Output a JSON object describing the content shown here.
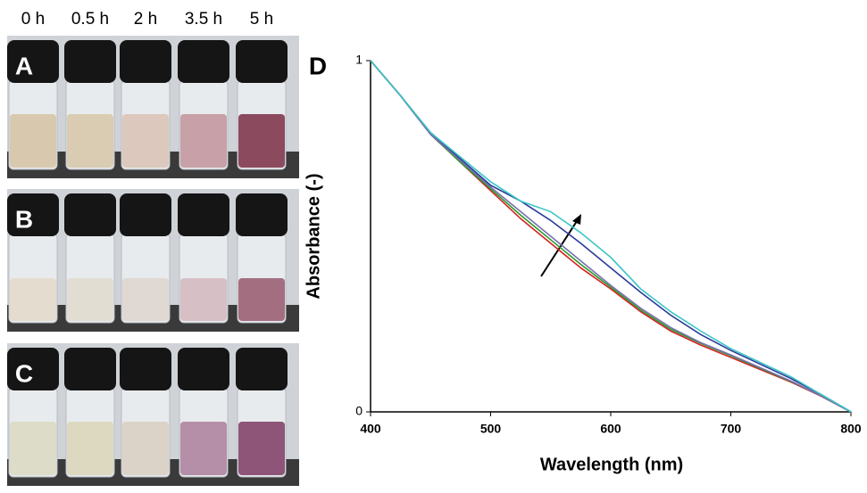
{
  "photo_panels": {
    "time_labels": [
      "0 h",
      "0.5 h",
      "2 h",
      "3.5 h",
      "5 h"
    ],
    "panel_labels": [
      "A",
      "B",
      "C"
    ]
  },
  "chart_data": {
    "type": "line",
    "panel_label": "D",
    "x_label": "Wavelength (nm)",
    "y_label": "Absorbance (-)",
    "x": [
      400,
      425,
      450,
      475,
      500,
      525,
      550,
      575,
      600,
      625,
      650,
      675,
      700,
      725,
      750,
      775,
      800
    ],
    "series": [
      {
        "color": "#d62020",
        "values": [
          1.0,
          0.9,
          0.79,
          0.71,
          0.63,
          0.55,
          0.48,
          0.41,
          0.35,
          0.285,
          0.23,
          0.19,
          0.155,
          0.12,
          0.085,
          0.045,
          0
        ]
      },
      {
        "color": "#2a9a2a",
        "values": [
          1.0,
          0.9,
          0.79,
          0.71,
          0.635,
          0.56,
          0.49,
          0.42,
          0.355,
          0.29,
          0.235,
          0.195,
          0.16,
          0.123,
          0.087,
          0.046,
          0
        ]
      },
      {
        "color": "#7a6fb0",
        "values": [
          1.0,
          0.9,
          0.79,
          0.715,
          0.64,
          0.57,
          0.5,
          0.43,
          0.36,
          0.295,
          0.24,
          0.197,
          0.162,
          0.125,
          0.088,
          0.046,
          0
        ]
      },
      {
        "color": "#2a3a9a",
        "values": [
          1.0,
          0.9,
          0.795,
          0.72,
          0.645,
          0.6,
          0.545,
          0.48,
          0.41,
          0.34,
          0.275,
          0.22,
          0.175,
          0.135,
          0.095,
          0.05,
          0
        ]
      },
      {
        "color": "#3cc6c6",
        "values": [
          1.0,
          0.9,
          0.795,
          0.725,
          0.655,
          0.6,
          0.57,
          0.51,
          0.44,
          0.35,
          0.285,
          0.23,
          0.18,
          0.14,
          0.1,
          0.05,
          0
        ]
      }
    ],
    "xlim": [
      400,
      800
    ],
    "ylim": [
      0,
      1
    ],
    "xticks": [
      400,
      500,
      600,
      700,
      800
    ],
    "yticks": [
      0,
      1
    ]
  }
}
